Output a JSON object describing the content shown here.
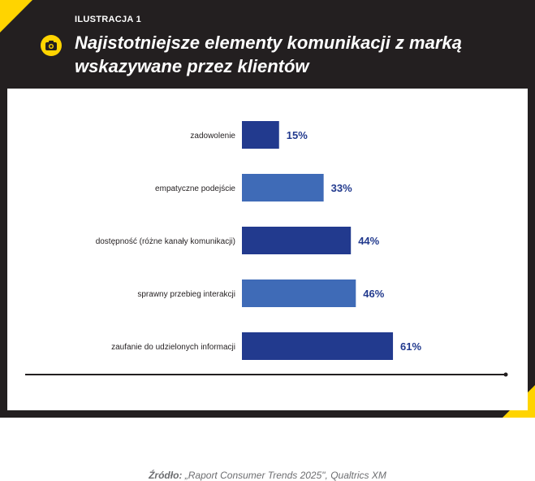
{
  "header": {
    "label": "ILUSTRACJA 1",
    "title": "Najistotniejsze elementy komunikacji z marką wskazywane przez klientów",
    "icon": "camera-icon"
  },
  "colors": {
    "dark_bar": "#223a8e",
    "light_bar": "#3f6bb7",
    "frame": "#231f20",
    "accent": "#ffd400"
  },
  "chart_data": {
    "type": "bar",
    "orientation": "horizontal",
    "categories": [
      "zadowolenie",
      "empatyczne podejście",
      "dostępność (różne kanały komunikacji)",
      "sprawny przebieg interakcji",
      "zaufanie do udzielonych informacji"
    ],
    "values": [
      15,
      33,
      44,
      46,
      61
    ],
    "value_labels": [
      "15%",
      "33%",
      "44%",
      "46%",
      "61%"
    ],
    "unit": "%"
  },
  "source": {
    "label": "Źródło:",
    "text": " „Raport Consumer Trends 2025\", Qualtrics XM"
  }
}
